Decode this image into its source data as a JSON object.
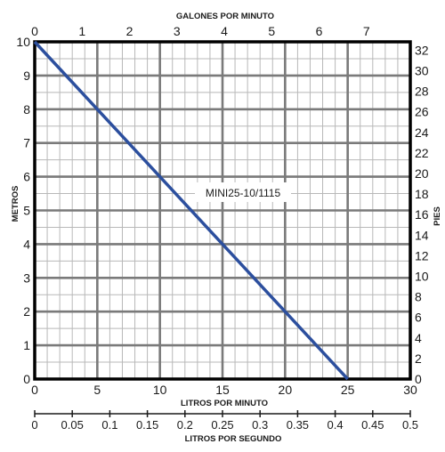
{
  "chart_data": {
    "type": "line",
    "series": [
      {
        "name": "MINI25-10/1115",
        "x": [
          0,
          25
        ],
        "y": [
          10,
          0
        ]
      }
    ],
    "curve_label": "MINI25-10/1115",
    "axes": {
      "bottom": {
        "label": "LITROS POR MINUTO",
        "range": [
          0,
          30
        ],
        "ticks": [
          "0",
          "5",
          "10",
          "15",
          "20",
          "25",
          "30"
        ]
      },
      "top": {
        "label": "GALONES POR MINUTO",
        "range": [
          0,
          7.925
        ],
        "ticks": [
          "0",
          "1",
          "2",
          "3",
          "4",
          "5",
          "6",
          "7"
        ]
      },
      "left": {
        "label": "METROS",
        "range": [
          0,
          10
        ],
        "ticks": [
          "0",
          "1",
          "2",
          "3",
          "4",
          "5",
          "6",
          "7",
          "8",
          "9",
          "10"
        ]
      },
      "right": {
        "label": "PIES",
        "range": [
          0,
          32.81
        ],
        "ticks": [
          "0",
          "2",
          "4",
          "6",
          "8",
          "10",
          "12",
          "14",
          "16",
          "18",
          "20",
          "22",
          "24",
          "26",
          "28",
          "30",
          "32"
        ]
      },
      "secondary_bottom": {
        "label": "LITROS POR SEGUNDO",
        "range": [
          0,
          0.5
        ],
        "ticks": [
          "0",
          "0.05",
          "0.1",
          "0.15",
          "0.2",
          "0.25",
          "0.3",
          "0.35",
          "0.4",
          "0.45",
          "0.5"
        ]
      }
    },
    "grid": true,
    "colors": {
      "line": "#2c4f9e",
      "grid_major": "#7a7a7a",
      "grid_minor": "#b8b8b8",
      "frame": "#000000"
    }
  }
}
